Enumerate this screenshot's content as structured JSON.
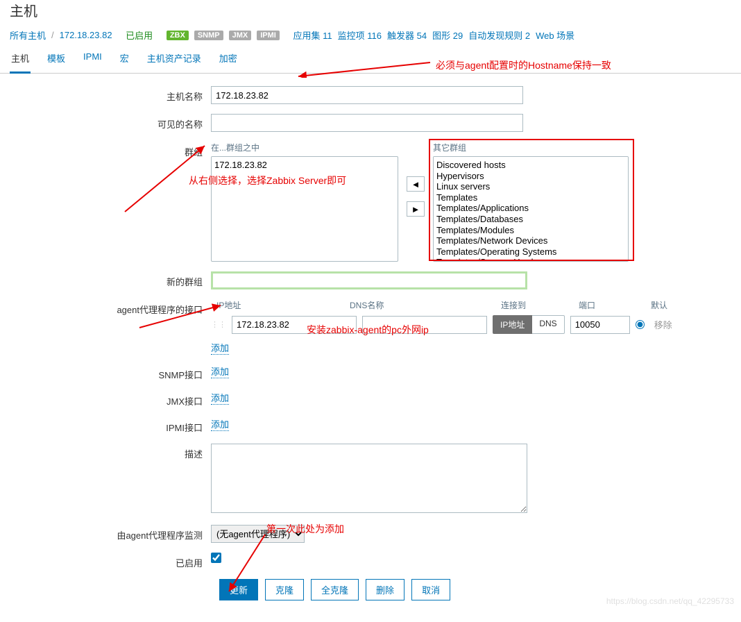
{
  "page_title": "主机",
  "breadcrumb": {
    "all_hosts": "所有主机",
    "host": "172.18.23.82"
  },
  "status": {
    "enabled": "已启用",
    "badges": {
      "zbx": "ZBX",
      "snmp": "SNMP",
      "jmx": "JMX",
      "ipmi": "IPMI"
    },
    "apps": {
      "label": "应用集",
      "count": 11
    },
    "items": {
      "label": "监控项",
      "count": 116
    },
    "triggers": {
      "label": "触发器",
      "count": 54
    },
    "graphs": {
      "label": "图形",
      "count": 29
    },
    "discovery": {
      "label": "自动发现规则",
      "count": 2
    },
    "web": "Web 场景"
  },
  "tabs": {
    "host": "主机",
    "templates": "模板",
    "ipmi": "IPMI",
    "macros": "宏",
    "inventory": "主机资产记录",
    "encryption": "加密"
  },
  "labels": {
    "hostname": "主机名称",
    "visiblename": "可见的名称",
    "groups": "群组",
    "in_groups": "在...群组之中",
    "other_groups": "其它群组",
    "new_groups": "新的群组",
    "agent_iface": "agent代理程序的接口",
    "ip": "IP地址",
    "dns": "DNS名称",
    "connect_to": "连接到",
    "port": "端口",
    "default": "默认",
    "snmp_iface": "SNMP接口",
    "jmx_iface": "JMX接口",
    "ipmi_iface": "IPMI接口",
    "description": "描述",
    "monitored_by": "由agent代理程序监测",
    "enabled": "已启用",
    "ip_btn": "IP地址",
    "dns_btn": "DNS",
    "remove": "移除",
    "add": "添加"
  },
  "values": {
    "hostname": "172.18.23.82",
    "visiblename": "",
    "in_groups": [
      "172.18.23.82"
    ],
    "other_groups": [
      "Discovered hosts",
      "Hypervisors",
      "Linux servers",
      "Templates",
      "Templates/Applications",
      "Templates/Databases",
      "Templates/Modules",
      "Templates/Network Devices",
      "Templates/Operating Systems",
      "Templates/Servers Hardware"
    ],
    "agent_ip": "172.18.23.82",
    "agent_dns": "",
    "agent_port": "10050",
    "proxy_option": "(无agent代理程序)",
    "enabled_checked": true
  },
  "buttons": {
    "update": "更新",
    "clone": "克隆",
    "fullclone": "全克隆",
    "delete": "删除",
    "cancel": "取消"
  },
  "annotations": {
    "a1": "必须与agent配置时的Hostname保持一致",
    "a2": "从右侧选择，选择Zabbix Server即可",
    "a3": "安装zabbix-agent的pc外网ip",
    "a4": "第一次此处为添加"
  },
  "colors": {
    "red": "#e60000",
    "link": "#0275b8",
    "primary": "#0275b8",
    "green_badge": "#62b52f"
  },
  "watermark": "https://blog.csdn.net/qq_42295733"
}
